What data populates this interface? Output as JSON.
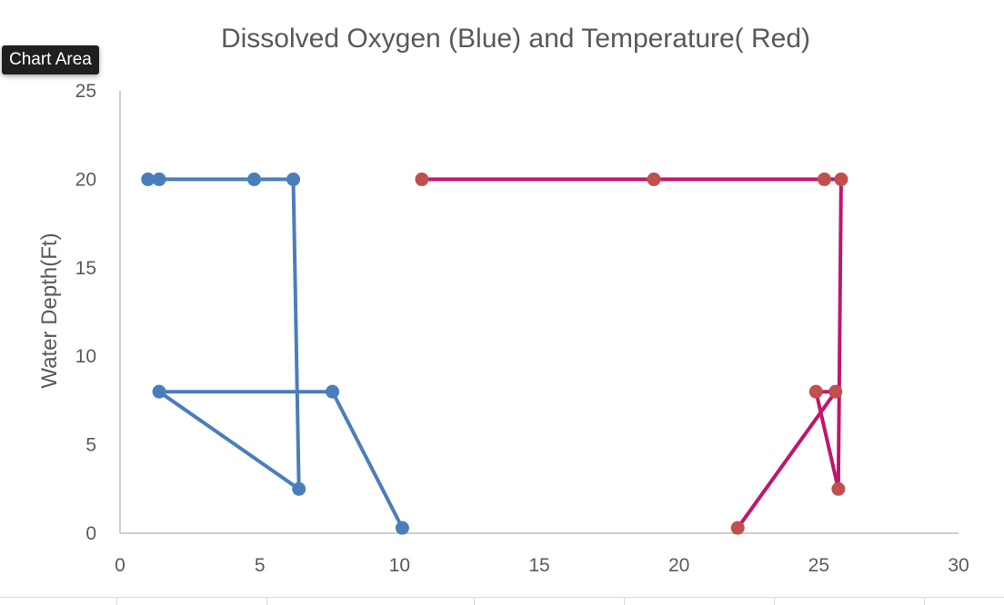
{
  "tooltip": {
    "label": "Chart Area"
  },
  "chart_data": {
    "type": "scatter",
    "title": "Dissolved Oxygen (Blue) and Temperature( Red)",
    "xlabel": "",
    "ylabel": "Water Depth(Ft)",
    "xlim": [
      0,
      30
    ],
    "ylim": [
      0,
      25
    ],
    "xticks": [
      0,
      5,
      10,
      15,
      20,
      25,
      30
    ],
    "yticks": [
      0,
      5,
      10,
      15,
      20,
      25
    ],
    "grid": false,
    "legend": "none",
    "series": [
      {
        "color": "#4a7ebb",
        "marker_color": "#4a7ebb",
        "points": [
          {
            "x": 1.0,
            "y": 20
          },
          {
            "x": 1.4,
            "y": 20
          },
          {
            "x": 4.8,
            "y": 20
          },
          {
            "x": 6.2,
            "y": 20
          },
          {
            "x": 6.4,
            "y": 2.5
          },
          {
            "x": 1.4,
            "y": 8
          },
          {
            "x": 7.6,
            "y": 8
          },
          {
            "x": 10.1,
            "y": 0.3
          }
        ]
      },
      {
        "color": "#c0166e",
        "marker_color": "#c0504d",
        "points": [
          {
            "x": 10.8,
            "y": 20
          },
          {
            "x": 19.1,
            "y": 20
          },
          {
            "x": 25.2,
            "y": 20
          },
          {
            "x": 25.8,
            "y": 20
          },
          {
            "x": 25.7,
            "y": 2.5
          },
          {
            "x": 24.9,
            "y": 8
          },
          {
            "x": 25.6,
            "y": 8
          },
          {
            "x": 22.1,
            "y": 0.3
          }
        ]
      }
    ]
  }
}
